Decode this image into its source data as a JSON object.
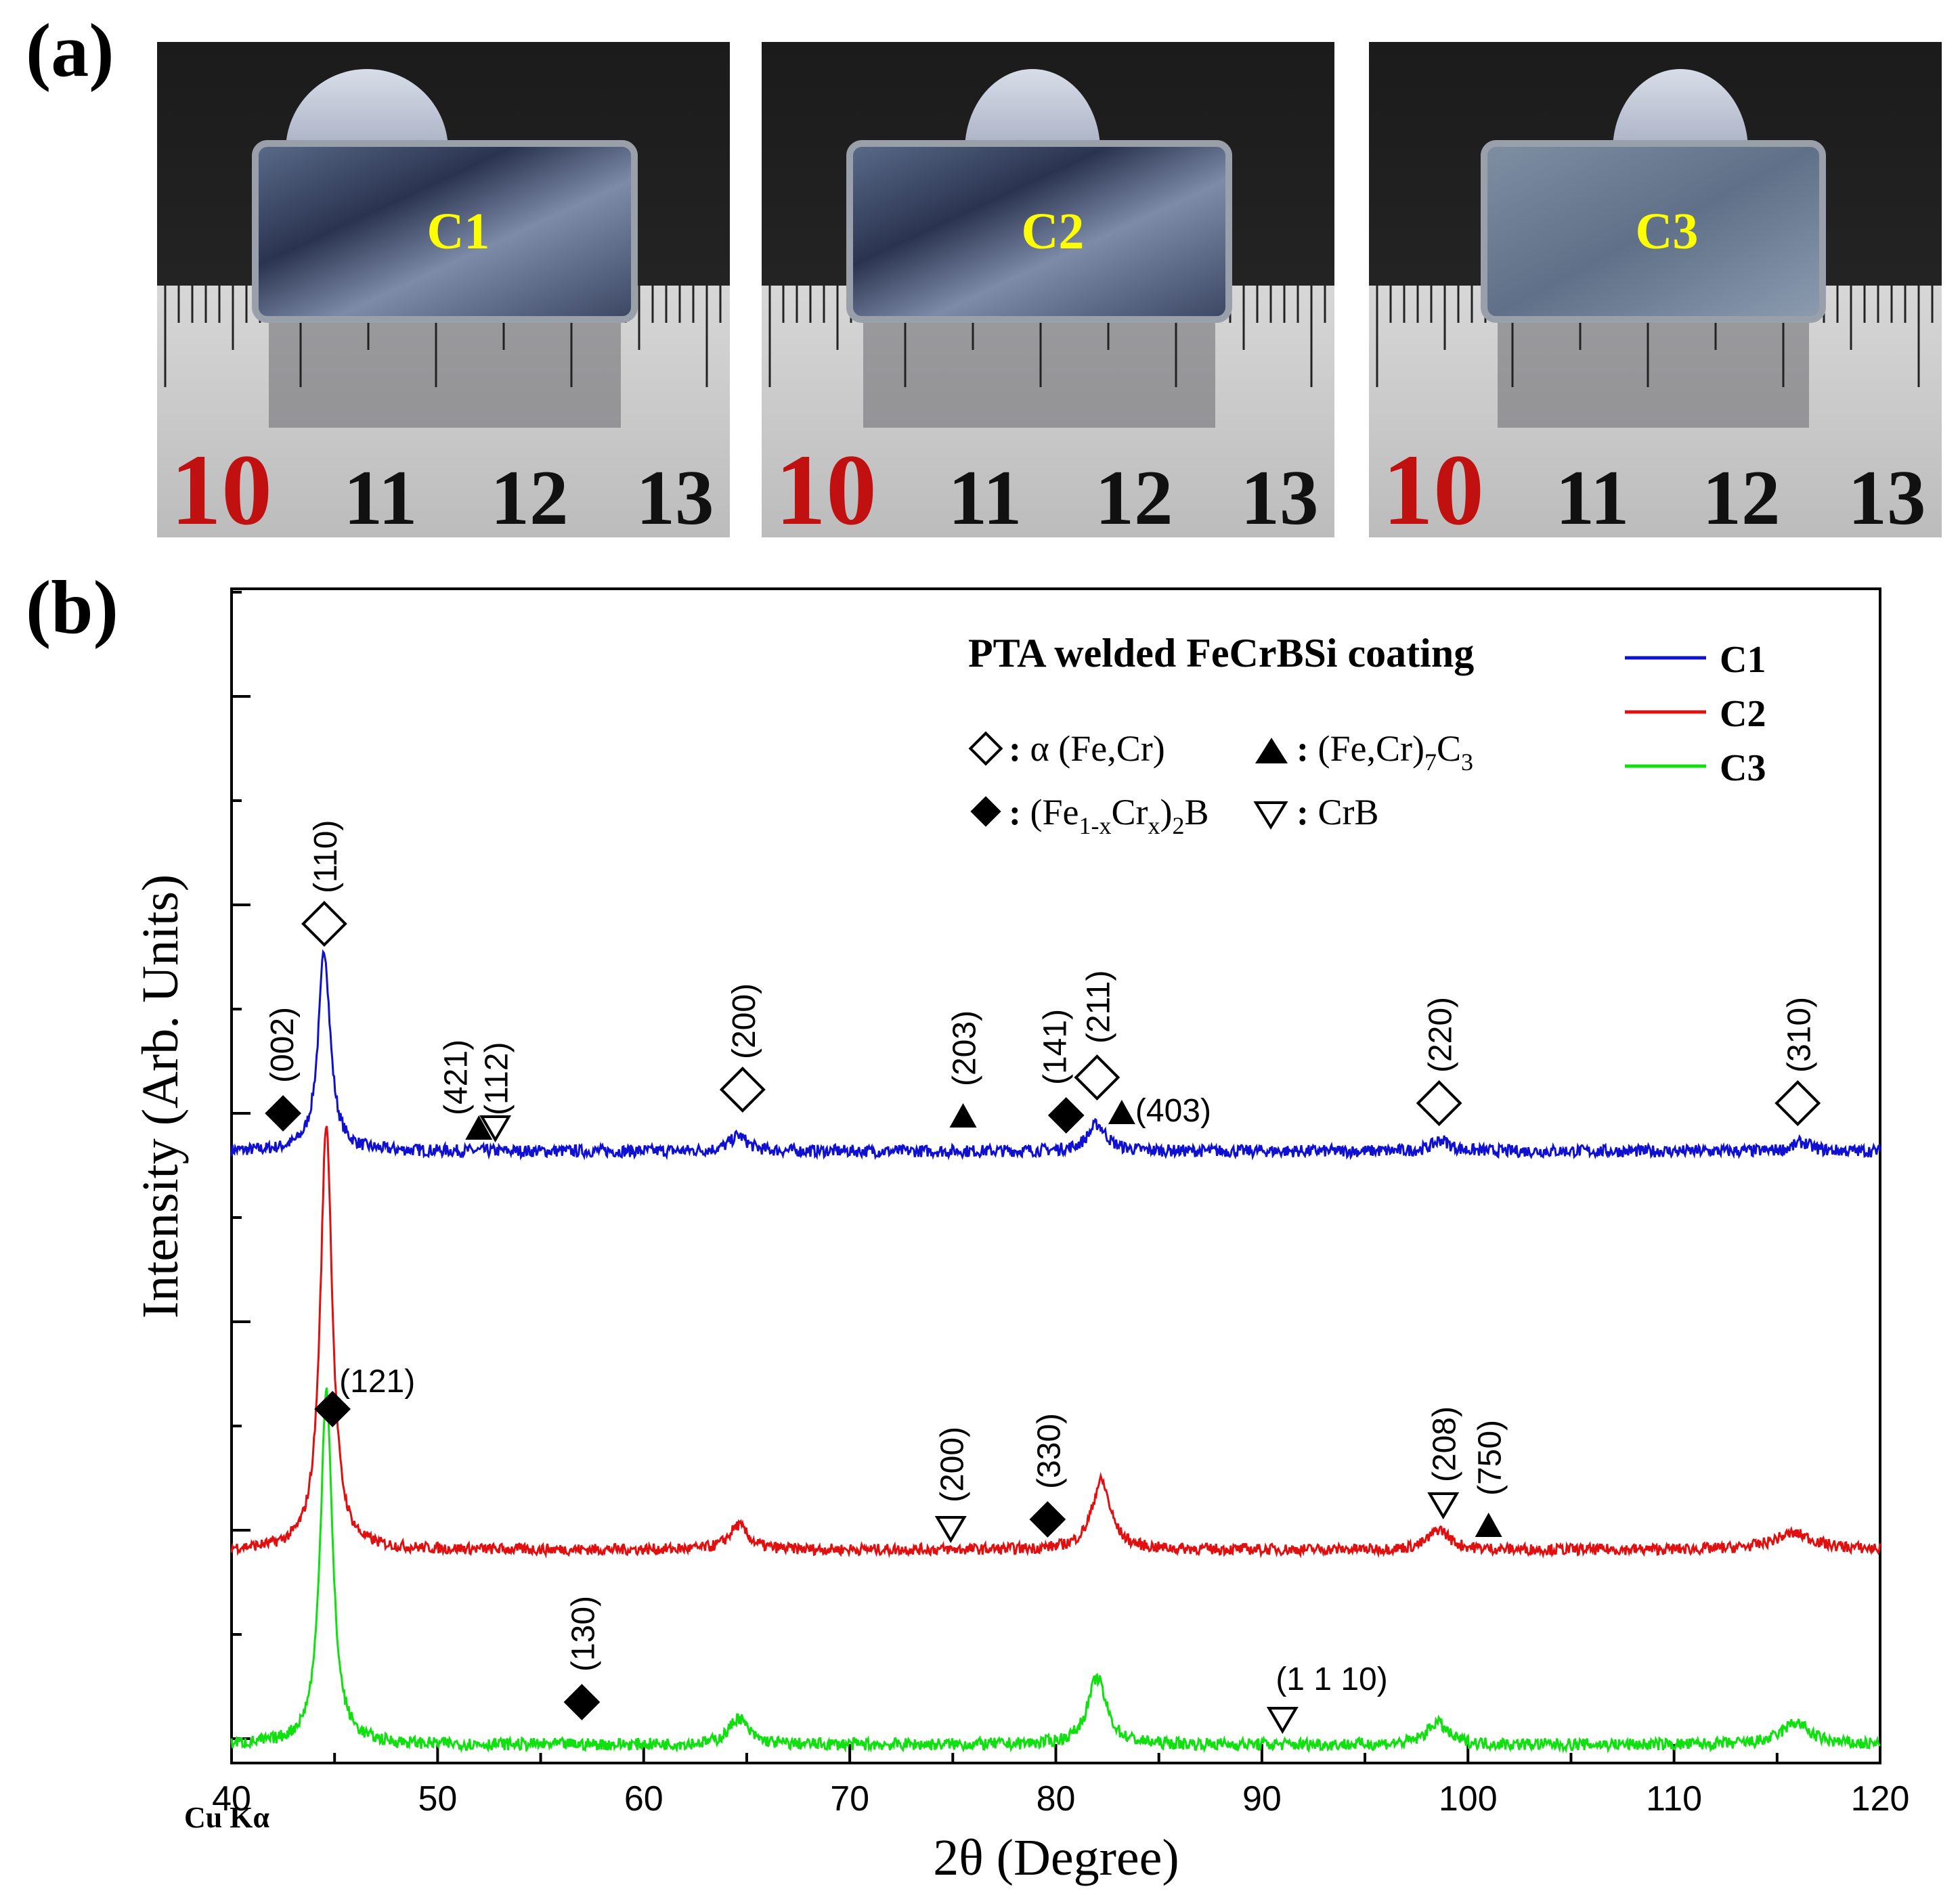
{
  "panel_a": {
    "label": "(a)",
    "samples": [
      {
        "name": "C1",
        "ruler_numbers": [
          "10",
          "11",
          "12",
          "13"
        ]
      },
      {
        "name": "C2",
        "ruler_numbers": [
          "10",
          "11",
          "12",
          "13"
        ]
      },
      {
        "name": "C3",
        "ruler_numbers": [
          "10",
          "11",
          "12",
          "13"
        ]
      }
    ]
  },
  "panel_b": {
    "label": "(b)",
    "radiation": "Cu Kα"
  },
  "colors": {
    "C1": "#1010d0",
    "C2": "#e01010",
    "C3": "#10e010",
    "ruler_red": "#c01010",
    "sample_label": "#ffff00"
  },
  "chart_data": {
    "type": "line",
    "title": "PTA welded FeCrBSi coating",
    "xlabel": "2θ (Degree)",
    "ylabel": "Intensity  (Arb. Units)",
    "xlim": [
      40,
      120
    ],
    "xticks": [
      "40",
      "50",
      "60",
      "70",
      "80",
      "90",
      "100",
      "110",
      "120"
    ],
    "x_note": "Cu Kα",
    "legend": [
      "C1",
      "C2",
      "C3"
    ],
    "phase_legend": [
      {
        "symbol": "open-diamond",
        "text": "α (Fe,Cr)"
      },
      {
        "symbol": "filled-triangle",
        "text": "(Fe,Cr)7C3"
      },
      {
        "symbol": "filled-diamond",
        "text": "(Fe1-xCrx)2B"
      },
      {
        "symbol": "open-triangle",
        "text": "CrB"
      }
    ],
    "series": [
      {
        "name": "C1",
        "baseline": 0.1,
        "peaks": [
          {
            "x": 44.5,
            "height": 0.9,
            "width": 0.35
          },
          {
            "x": 64.6,
            "height": 0.07,
            "width": 0.5
          },
          {
            "x": 82.0,
            "height": 0.12,
            "width": 0.55
          },
          {
            "x": 98.7,
            "height": 0.05,
            "width": 0.5
          },
          {
            "x": 116.2,
            "height": 0.04,
            "width": 0.5
          }
        ]
      },
      {
        "name": "C2",
        "baseline": 0.1,
        "peaks": [
          {
            "x": 44.6,
            "height": 2.1,
            "width": 0.35
          },
          {
            "x": 64.6,
            "height": 0.12,
            "width": 0.55
          },
          {
            "x": 82.2,
            "height": 0.34,
            "width": 0.55
          },
          {
            "x": 98.6,
            "height": 0.1,
            "width": 0.6
          },
          {
            "x": 115.8,
            "height": 0.08,
            "width": 1.2
          }
        ]
      },
      {
        "name": "C3",
        "baseline": 0.1,
        "peaks": [
          {
            "x": 44.6,
            "height": 1.6,
            "width": 0.35
          },
          {
            "x": 64.6,
            "height": 0.12,
            "width": 0.55
          },
          {
            "x": 82.0,
            "height": 0.3,
            "width": 0.55
          },
          {
            "x": 98.5,
            "height": 0.1,
            "width": 0.6
          },
          {
            "x": 115.9,
            "height": 0.1,
            "width": 0.8
          }
        ]
      }
    ],
    "annotations": [
      {
        "series": "C1",
        "symbol": "open-diamond",
        "label": "(110)",
        "x": 44.5
      },
      {
        "series": "C1",
        "symbol": "filled-diamond",
        "label": "(002)",
        "x": 42.5
      },
      {
        "series": "C1",
        "symbol": "filled-triangle",
        "label": "(421)",
        "x": 52.0
      },
      {
        "series": "C1",
        "symbol": "open-triangle",
        "label": "(112)",
        "x": 52.8
      },
      {
        "series": "C1",
        "symbol": "open-diamond",
        "label": "(200)",
        "x": 64.8
      },
      {
        "series": "C1",
        "symbol": "filled-triangle",
        "label": "(203)",
        "x": 75.5
      },
      {
        "series": "C1",
        "symbol": "filled-diamond",
        "label": "(141)",
        "x": 80.5
      },
      {
        "series": "C1",
        "symbol": "open-diamond",
        "label": "(211)",
        "x": 82.0
      },
      {
        "series": "C1",
        "symbol": "filled-triangle",
        "label": "(403)",
        "x": 83.2
      },
      {
        "series": "C1",
        "symbol": "open-diamond",
        "label": "(220)",
        "x": 98.6
      },
      {
        "series": "C1",
        "symbol": "open-diamond",
        "label": "(310)",
        "x": 116.0
      },
      {
        "series": "C2",
        "symbol": "filled-diamond",
        "label": "(121)",
        "x": 44.9
      },
      {
        "series": "C2",
        "symbol": "open-triangle",
        "label": "(200)",
        "x": 74.9
      },
      {
        "series": "C2",
        "symbol": "filled-diamond",
        "label": "(330)",
        "x": 79.6
      },
      {
        "series": "C2",
        "symbol": "open-triangle",
        "label": "(208)",
        "x": 98.8
      },
      {
        "series": "C2",
        "symbol": "filled-triangle",
        "label": "(750)",
        "x": 101.0
      },
      {
        "series": "C3",
        "symbol": "filled-diamond",
        "label": "(130)",
        "x": 57.0
      },
      {
        "series": "C3",
        "symbol": "open-triangle",
        "label": "(1 1 10)",
        "x": 91.0
      }
    ]
  }
}
